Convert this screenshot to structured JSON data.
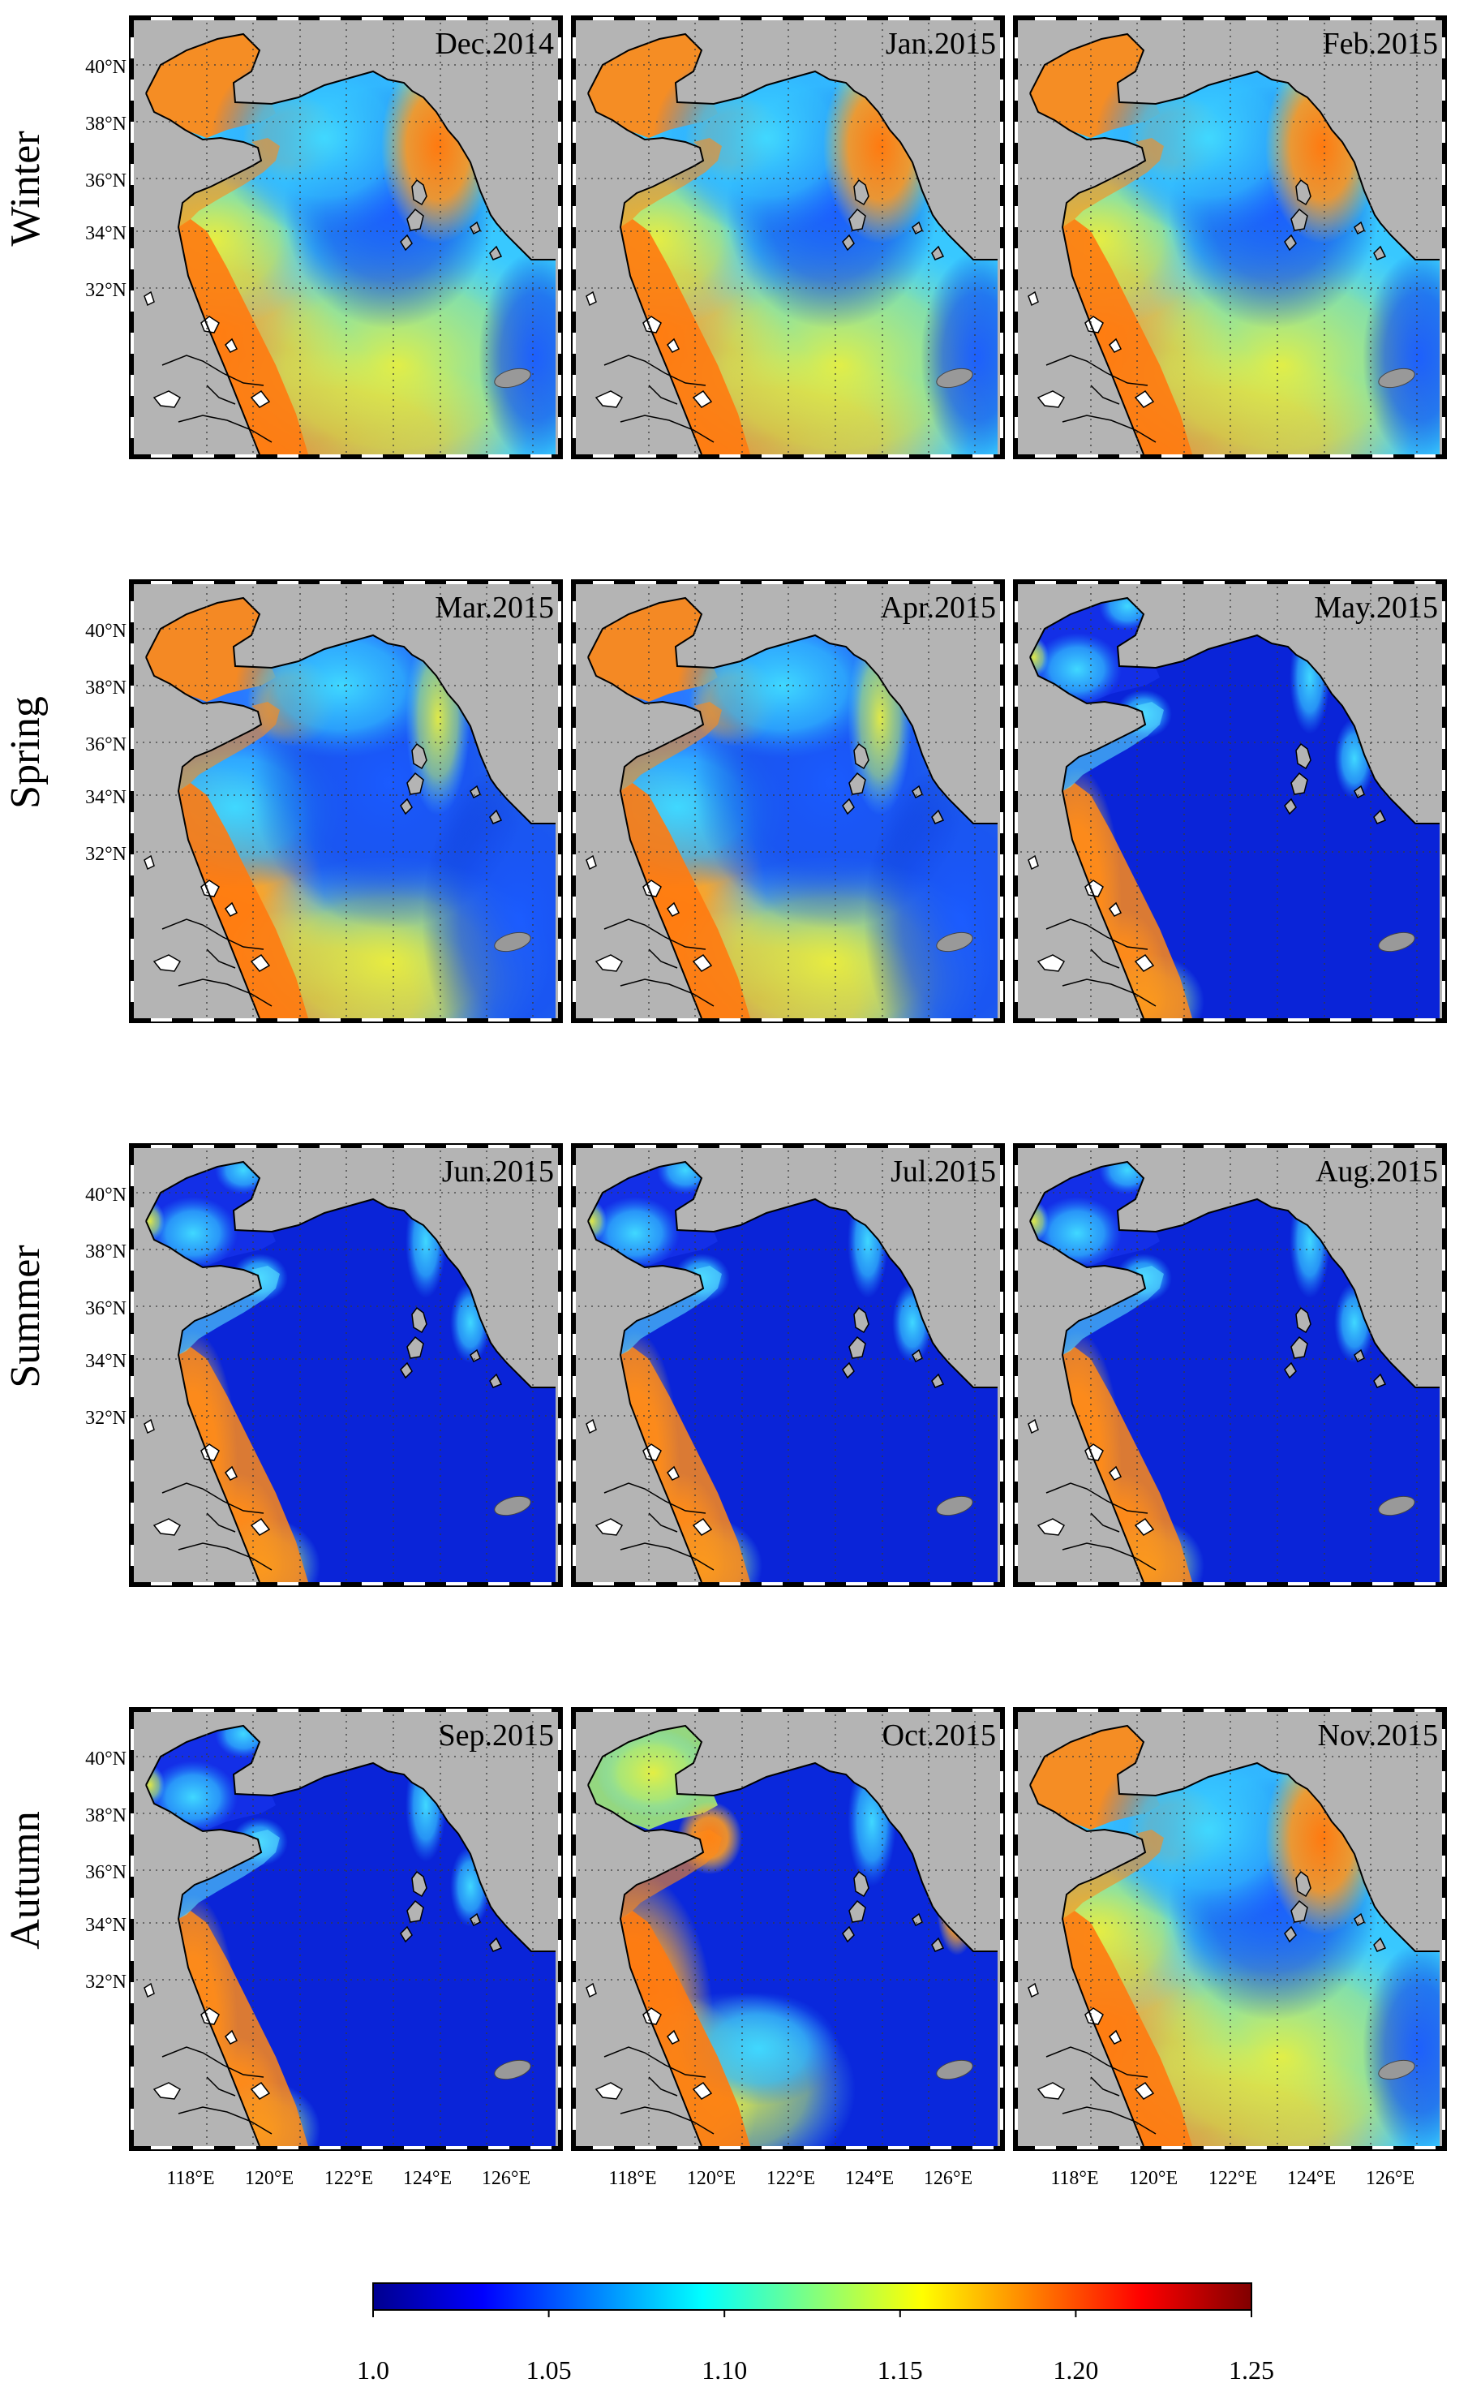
{
  "figure": {
    "seasons": [
      "Winter",
      "Spring",
      "Summer",
      "Autumn"
    ],
    "lat_labels": [
      "40°N",
      "38°N",
      "36°N",
      "34°N",
      "32°N"
    ],
    "lon_labels": [
      "118°E",
      "120°E",
      "122°E",
      "124°E",
      "126°E"
    ],
    "panels": [
      {
        "title": "Dec.2014",
        "mode": "high"
      },
      {
        "title": "Jan.2015",
        "mode": "high"
      },
      {
        "title": "Feb.2015",
        "mode": "high"
      },
      {
        "title": "Mar.2015",
        "mode": "mid"
      },
      {
        "title": "Apr.2015",
        "mode": "mid"
      },
      {
        "title": "May.2015",
        "mode": "low"
      },
      {
        "title": "Jun.2015",
        "mode": "low"
      },
      {
        "title": "Jul.2015",
        "mode": "low"
      },
      {
        "title": "Aug.2015",
        "mode": "low"
      },
      {
        "title": "Sep.2015",
        "mode": "low"
      },
      {
        "title": "Oct.2015",
        "mode": "lowmid"
      },
      {
        "title": "Nov.2015",
        "mode": "high"
      }
    ],
    "colorbar": {
      "ticks": [
        "1.0",
        "1.05",
        "1.10",
        "1.15",
        "1.20",
        "1.25"
      ],
      "colors": [
        "#00008f",
        "#0000ff",
        "#0080ff",
        "#00ffff",
        "#80ff80",
        "#ffff00",
        "#ff8000",
        "#ff0000",
        "#800000"
      ]
    },
    "colors": {
      "land": "#b4b4b4",
      "coast": "#000000",
      "grid": "#3a3a3a"
    }
  }
}
